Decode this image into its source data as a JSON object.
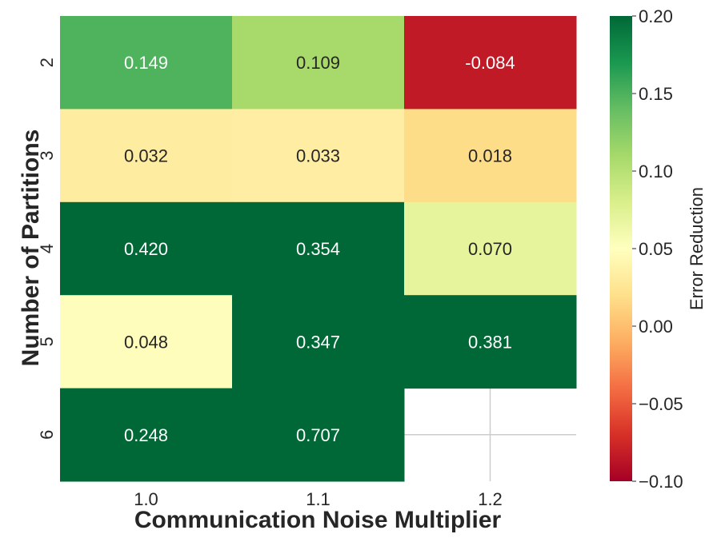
{
  "chart_data": {
    "type": "heatmap",
    "title": "",
    "xlabel": "Communication Noise Multiplier",
    "ylabel": "Number of Partitions",
    "x_categories": [
      "1.0",
      "1.1",
      "1.2"
    ],
    "y_categories": [
      "2",
      "3",
      "4",
      "5",
      "6"
    ],
    "values": [
      [
        0.149,
        0.109,
        -0.084
      ],
      [
        0.032,
        0.033,
        0.018
      ],
      [
        0.42,
        0.354,
        0.07
      ],
      [
        0.048,
        0.347,
        0.381
      ],
      [
        0.248,
        0.707,
        null
      ]
    ],
    "cell_labels": [
      [
        "0.149",
        "0.109",
        "-0.084"
      ],
      [
        "0.032",
        "0.033",
        "0.018"
      ],
      [
        "0.420",
        "0.354",
        "0.070"
      ],
      [
        "0.048",
        "0.347",
        "0.381"
      ],
      [
        "0.248",
        "0.707",
        ""
      ]
    ],
    "colorbar": {
      "label": "Error Reduction",
      "vmin": -0.1,
      "vmax": 0.2,
      "ticks": [
        0.2,
        0.15,
        0.1,
        0.05,
        0.0,
        -0.05,
        -0.1
      ],
      "tick_labels": [
        "0.20",
        "0.15",
        "0.10",
        "0.05",
        "0.00",
        "−0.05",
        "−0.10"
      ]
    },
    "colormap": [
      "#a50026",
      "#d73027",
      "#f46d43",
      "#fdae61",
      "#fee08b",
      "#ffffbf",
      "#d9ef8b",
      "#a6d96a",
      "#66bd63",
      "#1a9850",
      "#006837"
    ],
    "grid": true
  }
}
